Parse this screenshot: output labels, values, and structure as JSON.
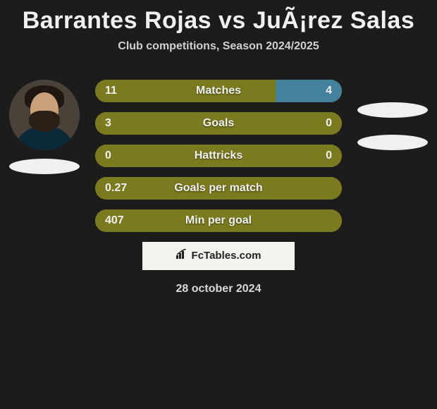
{
  "title": "Barrantes Rojas vs JuÃ¡rez Salas",
  "subtitle": "Club competitions, Season 2024/2025",
  "date": "28 october 2024",
  "brand": "FcTables.com",
  "left_color": "#7a7b1f",
  "right_color": "#42829c",
  "background": "#1c1c1c",
  "text_color": "#f0f0f0",
  "rows": [
    {
      "label": "Matches",
      "left": "11",
      "right": "4",
      "left_pct": 73,
      "right_pct": 27
    },
    {
      "label": "Goals",
      "left": "3",
      "right": "0",
      "left_pct": 100,
      "right_pct": 0
    },
    {
      "label": "Hattricks",
      "left": "0",
      "right": "0",
      "left_pct": 100,
      "right_pct": 0
    },
    {
      "label": "Goals per match",
      "left": "0.27",
      "right": "",
      "left_pct": 100,
      "right_pct": 0
    },
    {
      "label": "Min per goal",
      "left": "407",
      "right": "",
      "left_pct": 100,
      "right_pct": 0
    }
  ],
  "left_player_has_photo": true,
  "logo_color": "#f0f0ee"
}
